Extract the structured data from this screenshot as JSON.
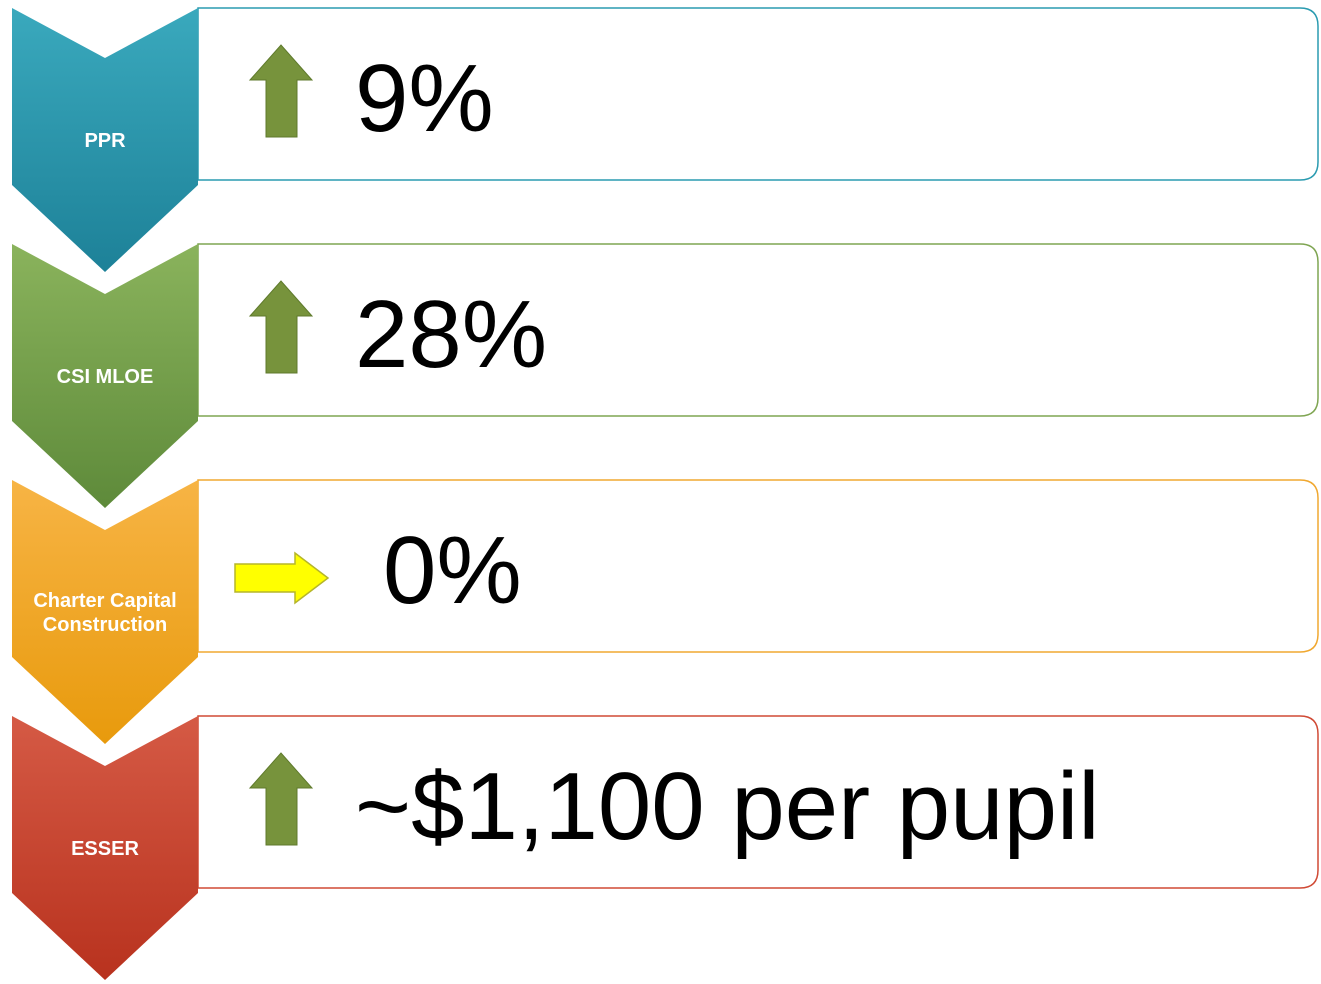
{
  "items": [
    {
      "label": [
        "PPR"
      ],
      "value": "9%"
    },
    {
      "label": [
        "CSI MLOE"
      ],
      "value": "28%"
    },
    {
      "label": [
        "Charter Capital",
        "Construction"
      ],
      "value": "0%"
    },
    {
      "label": [
        "ESSER"
      ],
      "value": "~$1,100 per pupil"
    }
  ]
}
